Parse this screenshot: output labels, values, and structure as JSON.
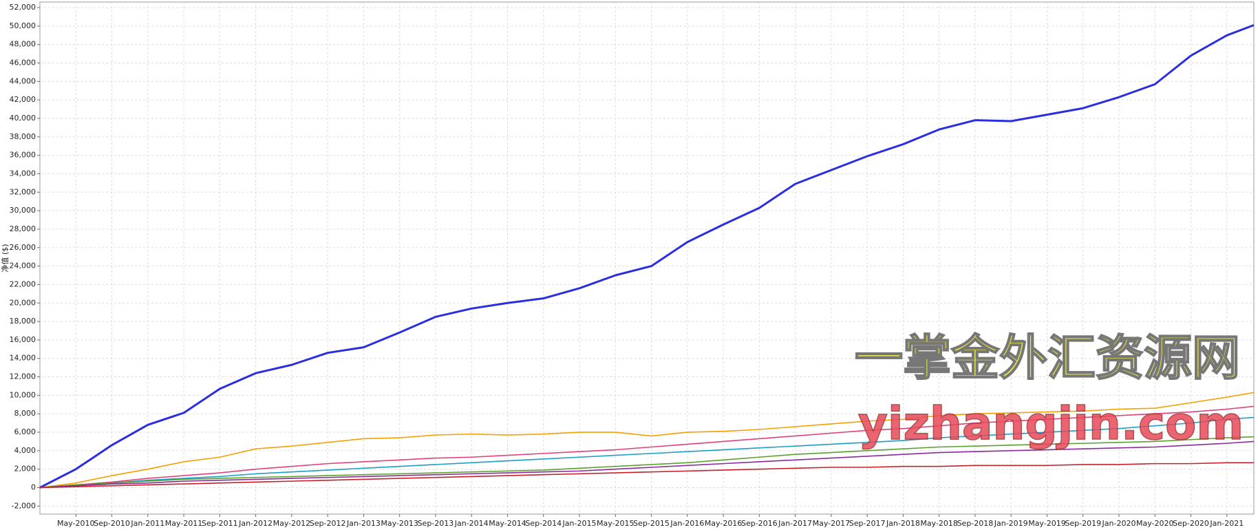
{
  "chart_data": {
    "type": "line",
    "y_label": "净值 ($)",
    "watermarks": [
      "一掌金外汇资源网",
      "yizhangjin.com"
    ],
    "x": [
      "2010-01",
      "2010-05",
      "2010-09",
      "2011-01",
      "2011-05",
      "2011-09",
      "2012-01",
      "2012-05",
      "2012-09",
      "2013-01",
      "2013-05",
      "2013-09",
      "2014-01",
      "2014-05",
      "2014-09",
      "2015-01",
      "2015-05",
      "2015-09",
      "2016-01",
      "2016-05",
      "2016-09",
      "2017-01",
      "2017-05",
      "2017-09",
      "2018-01",
      "2018-05",
      "2018-09",
      "2019-01",
      "2019-05",
      "2019-09",
      "2020-01",
      "2020-05",
      "2020-09",
      "2021-01",
      "2021-04"
    ],
    "xlim": [
      "2010-01",
      "2021-04"
    ],
    "xticks": [
      {
        "value": "2010-05",
        "label": "May-2010"
      },
      {
        "value": "2010-09",
        "label": "Sep-2010"
      },
      {
        "value": "2011-01",
        "label": "Jan-2011"
      },
      {
        "value": "2011-05",
        "label": "May-2011"
      },
      {
        "value": "2011-09",
        "label": "Sep-2011"
      },
      {
        "value": "2012-01",
        "label": "Jan-2012"
      },
      {
        "value": "2012-05",
        "label": "May-2012"
      },
      {
        "value": "2012-09",
        "label": "Sep-2012"
      },
      {
        "value": "2013-01",
        "label": "Jan-2013"
      },
      {
        "value": "2013-05",
        "label": "May-2013"
      },
      {
        "value": "2013-09",
        "label": "Sep-2013"
      },
      {
        "value": "2014-01",
        "label": "Jan-2014"
      },
      {
        "value": "2014-05",
        "label": "May-2014"
      },
      {
        "value": "2014-09",
        "label": "Sep-2014"
      },
      {
        "value": "2015-01",
        "label": "Jan-2015"
      },
      {
        "value": "2015-05",
        "label": "May-2015"
      },
      {
        "value": "2015-09",
        "label": "Sep-2015"
      },
      {
        "value": "2016-01",
        "label": "Jan-2016"
      },
      {
        "value": "2016-05",
        "label": "May-2016"
      },
      {
        "value": "2016-09",
        "label": "Sep-2016"
      },
      {
        "value": "2017-01",
        "label": "Jan-2017"
      },
      {
        "value": "2017-05",
        "label": "May-2017"
      },
      {
        "value": "2017-09",
        "label": "Sep-2017"
      },
      {
        "value": "2018-01",
        "label": "Jan-2018"
      },
      {
        "value": "2018-05",
        "label": "May-2018"
      },
      {
        "value": "2018-09",
        "label": "Sep-2018"
      },
      {
        "value": "2019-01",
        "label": "Jan-2019"
      },
      {
        "value": "2019-05",
        "label": "May-2019"
      },
      {
        "value": "2019-09",
        "label": "Sep-2019"
      },
      {
        "value": "2020-01",
        "label": "Jan-2020"
      },
      {
        "value": "2020-05",
        "label": "May-2020"
      },
      {
        "value": "2020-09",
        "label": "Sep-2020"
      },
      {
        "value": "2021-01",
        "label": "Jan-2021"
      }
    ],
    "ylim": [
      -2870,
      52600
    ],
    "yticks": [
      {
        "value": -2000,
        "label": "-2,000"
      },
      0,
      {
        "value": 2000,
        "label": "2,000"
      },
      {
        "value": 4000,
        "label": "4,000"
      },
      {
        "value": 6000,
        "label": "6,000"
      },
      {
        "value": 8000,
        "label": "8,000"
      },
      {
        "value": 10000,
        "label": "10,000"
      },
      {
        "value": 12000,
        "label": "12,000"
      },
      {
        "value": 14000,
        "label": "14,000"
      },
      {
        "value": 16000,
        "label": "16,000"
      },
      {
        "value": 18000,
        "label": "18,000"
      },
      {
        "value": 20000,
        "label": "20,000"
      },
      {
        "value": 22000,
        "label": "22,000"
      },
      {
        "value": 24000,
        "label": "24,000"
      },
      {
        "value": 26000,
        "label": "26,000"
      },
      {
        "value": 28000,
        "label": "28,000"
      },
      {
        "value": 30000,
        "label": "30,000"
      },
      {
        "value": 32000,
        "label": "32,000"
      },
      {
        "value": 34000,
        "label": "34,000"
      },
      {
        "value": 36000,
        "label": "36,000"
      },
      {
        "value": 38000,
        "label": "38,000"
      },
      {
        "value": 40000,
        "label": "40,000"
      },
      {
        "value": 42000,
        "label": "42,000"
      },
      {
        "value": 44000,
        "label": "44,000"
      },
      {
        "value": 46000,
        "label": "46,000"
      },
      {
        "value": 48000,
        "label": "48,000"
      },
      {
        "value": 50000,
        "label": "50,000"
      },
      {
        "value": 52000,
        "label": "52,000"
      }
    ],
    "grid": true,
    "series": [
      {
        "color": "#2a2ee0",
        "width": 3,
        "values": [
          0,
          2000,
          4600,
          6800,
          8100,
          10700,
          12400,
          13300,
          14600,
          15200,
          16800,
          18500,
          19400,
          20000,
          20500,
          21600,
          23000,
          24000,
          26600,
          28500,
          30300,
          32900,
          34400,
          35900,
          37200,
          38800,
          39800,
          39700,
          40400,
          41100,
          42300,
          43700,
          46800,
          49000,
          50100
        ]
      },
      {
        "color": "#f5a000",
        "width": 1.6,
        "values": [
          0,
          500,
          1300,
          2000,
          2800,
          3300,
          4200,
          4500,
          4900,
          5300,
          5400,
          5700,
          5800,
          5700,
          5800,
          6000,
          6000,
          5600,
          6000,
          6100,
          6300,
          6600,
          6900,
          7200,
          7400,
          7800,
          8000,
          8100,
          8200,
          8300,
          8500,
          8600,
          9200,
          9800,
          10300
        ]
      },
      {
        "color": "#e0407a",
        "width": 1.6,
        "values": [
          0,
          300,
          600,
          1000,
          1300,
          1600,
          2000,
          2300,
          2600,
          2800,
          3000,
          3200,
          3300,
          3500,
          3700,
          3900,
          4100,
          4400,
          4700,
          5000,
          5300,
          5600,
          5900,
          6200,
          6400,
          6700,
          7000,
          7200,
          7400,
          7600,
          7800,
          8000,
          8200,
          8500,
          8800
        ]
      },
      {
        "color": "#1a9ec8",
        "width": 1.6,
        "values": [
          0,
          200,
          500,
          800,
          1000,
          1200,
          1500,
          1700,
          1900,
          2100,
          2300,
          2500,
          2700,
          2900,
          3100,
          3300,
          3500,
          3700,
          3900,
          4100,
          4300,
          4500,
          4700,
          4900,
          5100,
          5400,
          5600,
          5800,
          6000,
          6200,
          6400,
          6700,
          7000,
          7400,
          7600
        ]
      },
      {
        "color": "#5aa02c",
        "width": 1.6,
        "values": [
          0,
          300,
          500,
          700,
          900,
          1000,
          1100,
          1200,
          1300,
          1400,
          1500,
          1600,
          1700,
          1800,
          1900,
          2100,
          2300,
          2500,
          2700,
          3000,
          3300,
          3600,
          3800,
          4000,
          4200,
          4400,
          4500,
          4600,
          4700,
          4800,
          4900,
          5000,
          5200,
          5400,
          5500
        ]
      },
      {
        "color": "#8a2a9a",
        "width": 1.6,
        "values": [
          0,
          200,
          400,
          500,
          700,
          800,
          900,
          1000,
          1100,
          1200,
          1300,
          1400,
          1500,
          1600,
          1700,
          1800,
          2000,
          2200,
          2400,
          2600,
          2800,
          3000,
          3200,
          3400,
          3600,
          3800,
          3900,
          4000,
          4100,
          4200,
          4300,
          4400,
          4600,
          4800,
          5000
        ]
      },
      {
        "color": "#c8202a",
        "width": 1.6,
        "values": [
          0,
          100,
          200,
          300,
          400,
          500,
          600,
          700,
          800,
          900,
          1000,
          1100,
          1200,
          1300,
          1400,
          1500,
          1600,
          1700,
          1800,
          1900,
          2000,
          2100,
          2200,
          2200,
          2300,
          2300,
          2400,
          2400,
          2400,
          2500,
          2500,
          2600,
          2600,
          2700,
          2700
        ]
      }
    ]
  }
}
